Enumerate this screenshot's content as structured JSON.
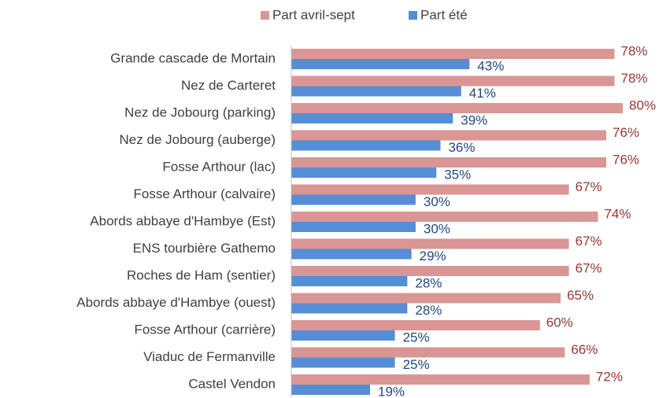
{
  "chart_data": {
    "type": "hbar",
    "categories": [
      "Grande cascade de Mortain",
      "Nez de Carteret",
      "Nez de Jobourg (parking)",
      "Nez de Jobourg (auberge)",
      "Fosse Arthour (lac)",
      "Fosse Arthour (calvaire)",
      "Abords abbaye d'Hambye (Est)",
      "ENS tourbière Gathemo",
      "Roches de Ham (sentier)",
      "Abords abbaye d'Hambye (ouest)",
      "Fosse Arthour (carrière)",
      "Viaduc de Fermanville",
      "Castel Vendon"
    ],
    "series": [
      {
        "name": "Part avril-sept",
        "color": "#d99694",
        "label_color": "#953735",
        "values": [
          78,
          78,
          80,
          76,
          76,
          67,
          74,
          67,
          67,
          65,
          60,
          66,
          72
        ],
        "value_labels": [
          "78%",
          "78%",
          "80%",
          "76%",
          "76%",
          "67%",
          "74%",
          "67%",
          "67%",
          "65%",
          "60%",
          "66%",
          "72%"
        ]
      },
      {
        "name": "Part été",
        "color": "#558ed5",
        "label_color": "#1f497d",
        "values": [
          43,
          41,
          39,
          36,
          35,
          30,
          30,
          29,
          28,
          28,
          25,
          25,
          19
        ],
        "value_labels": [
          "43%",
          "41%",
          "39%",
          "36%",
          "35%",
          "30%",
          "30%",
          "29%",
          "28%",
          "28%",
          "25%",
          "25%",
          "19%"
        ]
      }
    ],
    "xlim": [
      0,
      100
    ],
    "legend": "top"
  }
}
